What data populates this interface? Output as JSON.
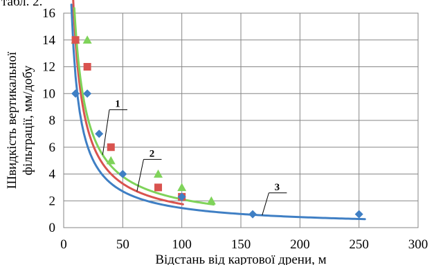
{
  "caption": "табл. 2.",
  "chart_data": {
    "type": "scatter",
    "title": "",
    "xlabel": "Відстань від картової дрени, м",
    "ylabel_line1": "Швидкість вертикальної",
    "ylabel_line2": "фільтрації, мм/добу",
    "xlim": [
      0,
      300
    ],
    "ylim": [
      0,
      16
    ],
    "xticks": [
      "0",
      "50",
      "100",
      "150",
      "200",
      "250",
      "300"
    ],
    "yticks": [
      "0",
      "2",
      "4",
      "6",
      "8",
      "10",
      "12",
      "14",
      "16"
    ],
    "grid": true,
    "legend": "none",
    "series": [
      {
        "name": "1",
        "marker": "triangle",
        "color": "#7fd35a",
        "points": [
          [
            10,
            14
          ],
          [
            20,
            14
          ],
          [
            40,
            5
          ],
          [
            80,
            4
          ],
          [
            100,
            3
          ],
          [
            125,
            2
          ]
        ],
        "trend": {
          "a": 106,
          "b": -0.85,
          "x_from": 9,
          "x_to": 127
        },
        "label_at": [
          41,
          9.0
        ]
      },
      {
        "name": "2",
        "marker": "square",
        "color": "#d9534f",
        "points": [
          [
            10,
            14
          ],
          [
            20,
            12
          ],
          [
            40,
            6
          ],
          [
            80,
            3
          ],
          [
            100,
            2.3
          ]
        ],
        "trend": {
          "a": 111,
          "b": -0.9,
          "x_from": 8,
          "x_to": 101
        },
        "label_at": [
          70,
          5.3
        ]
      },
      {
        "name": "3",
        "marker": "diamond",
        "color": "#3f7fc4",
        "points": [
          [
            10,
            10
          ],
          [
            20,
            10
          ],
          [
            30,
            7
          ],
          [
            50,
            4
          ],
          [
            100,
            2.3
          ],
          [
            160,
            1
          ],
          [
            250,
            1
          ]
        ],
        "trend": {
          "a": 88,
          "b": -0.89,
          "x_from": 6.5,
          "x_to": 255
        },
        "label_at": [
          176,
          2.8
        ]
      }
    ]
  }
}
